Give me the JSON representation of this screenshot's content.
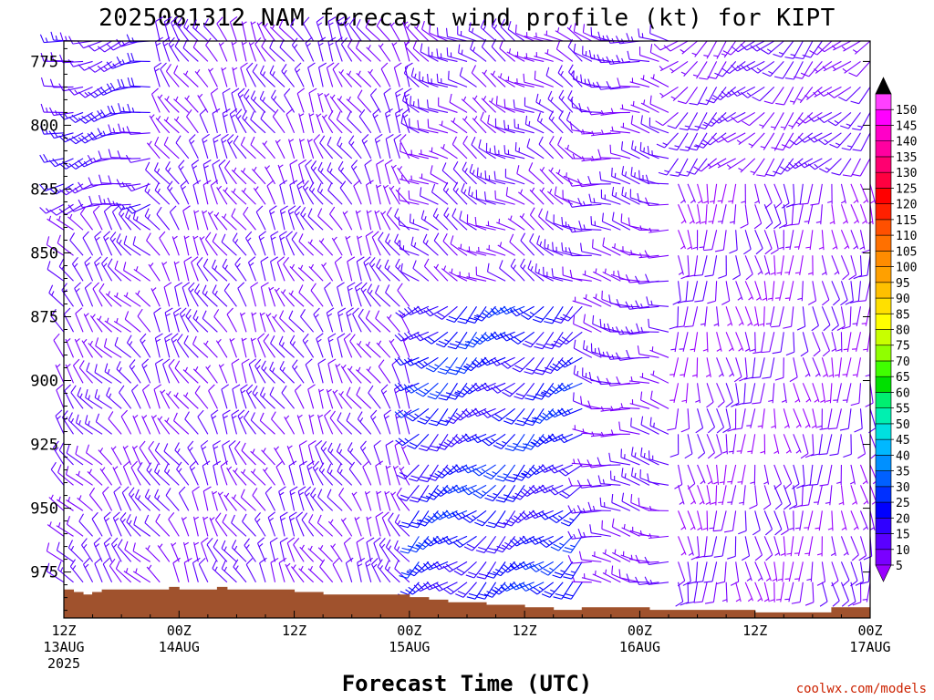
{
  "chart_data": {
    "type": "wind_barb_profile",
    "title": "2025081312 NAM forecast wind profile (kt) for KIPT",
    "xlabel": "Forecast Time (UTC)",
    "ylabel": "",
    "y_ticks": [
      775,
      800,
      825,
      850,
      875,
      900,
      925,
      950,
      975
    ],
    "ylim": [
      767,
      993
    ],
    "x_range_hours": [
      0,
      84
    ],
    "x_ticks": [
      {
        "hour": 0,
        "l1": "12Z",
        "l2": "13AUG",
        "l3": "2025"
      },
      {
        "hour": 12,
        "l1": "00Z",
        "l2": "14AUG",
        "l3": ""
      },
      {
        "hour": 24,
        "l1": "12Z",
        "l2": "",
        "l3": ""
      },
      {
        "hour": 36,
        "l1": "00Z",
        "l2": "15AUG",
        "l3": ""
      },
      {
        "hour": 48,
        "l1": "12Z",
        "l2": "",
        "l3": ""
      },
      {
        "hour": 60,
        "l1": "00Z",
        "l2": "16AUG",
        "l3": ""
      },
      {
        "hour": 72,
        "l1": "12Z",
        "l2": "",
        "l3": ""
      },
      {
        "hour": 84,
        "l1": "00Z",
        "l2": "17AUG",
        "l3": ""
      }
    ],
    "colorbar": {
      "levels": [
        5,
        10,
        15,
        20,
        25,
        30,
        35,
        40,
        45,
        50,
        55,
        60,
        65,
        70,
        75,
        80,
        85,
        90,
        95,
        100,
        105,
        110,
        115,
        120,
        125,
        130,
        135,
        140,
        145,
        150
      ],
      "colors": [
        "#7a00ff",
        "#5a00ff",
        "#3000ff",
        "#0000ff",
        "#0030ff",
        "#0060ff",
        "#0090ff",
        "#00b8ff",
        "#00e0e0",
        "#00f0b0",
        "#00f070",
        "#00e000",
        "#40ff00",
        "#90ff00",
        "#c8ff00",
        "#ffff00",
        "#ffe000",
        "#ffc000",
        "#ffa000",
        "#ff8c00",
        "#ff7000",
        "#ff5000",
        "#ff2000",
        "#ff0000",
        "#ff0040",
        "#ff0070",
        "#ff00a0",
        "#ff00c8",
        "#ff00ff",
        "#ff40ff"
      ],
      "over_color": "#000000",
      "under_color": "#9900ff"
    },
    "terrain_color": "#a0522d",
    "terrain_pressure": [
      [
        0,
        982
      ],
      [
        1,
        983
      ],
      [
        2,
        984
      ],
      [
        3,
        983
      ],
      [
        4,
        982
      ],
      [
        5,
        982
      ],
      [
        6,
        982
      ],
      [
        7,
        982
      ],
      [
        8,
        982
      ],
      [
        9,
        982
      ],
      [
        10,
        982
      ],
      [
        11,
        981
      ],
      [
        12,
        982
      ],
      [
        13,
        982
      ],
      [
        14,
        982
      ],
      [
        15,
        982
      ],
      [
        16,
        981
      ],
      [
        17,
        982
      ],
      [
        18,
        982
      ],
      [
        19,
        982
      ],
      [
        20,
        982
      ],
      [
        21,
        982
      ],
      [
        22,
        982
      ],
      [
        23,
        982
      ],
      [
        24,
        983
      ],
      [
        25,
        983
      ],
      [
        26,
        983
      ],
      [
        27,
        984
      ],
      [
        28,
        984
      ],
      [
        29,
        984
      ],
      [
        30,
        984
      ],
      [
        31,
        984
      ],
      [
        32,
        984
      ],
      [
        33,
        984
      ],
      [
        34,
        984
      ],
      [
        35,
        984
      ],
      [
        36,
        985
      ],
      [
        37,
        985
      ],
      [
        38,
        986
      ],
      [
        39,
        986
      ],
      [
        40,
        987
      ],
      [
        41,
        987
      ],
      [
        42,
        987
      ],
      [
        43,
        987
      ],
      [
        44,
        988
      ],
      [
        45,
        988
      ],
      [
        46,
        988
      ],
      [
        47,
        988
      ],
      [
        48,
        989
      ],
      [
        49,
        989
      ],
      [
        50,
        989
      ],
      [
        51,
        990
      ],
      [
        52,
        990
      ],
      [
        53,
        990
      ],
      [
        54,
        989
      ],
      [
        55,
        989
      ],
      [
        56,
        989
      ],
      [
        57,
        989
      ],
      [
        58,
        989
      ],
      [
        59,
        989
      ],
      [
        60,
        989
      ],
      [
        61,
        990
      ],
      [
        62,
        990
      ],
      [
        63,
        990
      ],
      [
        64,
        990
      ],
      [
        65,
        990
      ],
      [
        66,
        990
      ],
      [
        67,
        990
      ],
      [
        68,
        990
      ],
      [
        69,
        990
      ],
      [
        70,
        990
      ],
      [
        71,
        990
      ],
      [
        72,
        991
      ],
      [
        73,
        991
      ],
      [
        74,
        991
      ],
      [
        75,
        991
      ],
      [
        76,
        991
      ],
      [
        77,
        991
      ],
      [
        78,
        991
      ],
      [
        79,
        991
      ],
      [
        80,
        989
      ],
      [
        81,
        989
      ],
      [
        82,
        989
      ],
      [
        83,
        989
      ],
      [
        84,
        989
      ]
    ],
    "wind_field": {
      "pressure_levels": [
        767,
        775,
        785,
        795,
        803,
        813,
        823,
        831,
        841,
        851,
        861,
        871,
        881,
        891,
        901,
        911,
        921,
        933,
        941,
        951,
        961,
        971,
        979
      ],
      "time_step_hours": 1,
      "regimes": [
        {
          "t": [
            0,
            10
          ],
          "p": [
            767,
            835
          ],
          "dir_deg": 255,
          "speed_kt": 15
        },
        {
          "t": [
            0,
            10
          ],
          "p": [
            835,
            990
          ],
          "dir_deg": 320,
          "speed_kt": 10
        },
        {
          "t": [
            10,
            37
          ],
          "p": [
            767,
            990
          ],
          "dir_deg": 330,
          "speed_kt": 10
        },
        {
          "t": [
            37,
            55
          ],
          "p": [
            767,
            870
          ],
          "dir_deg": 300,
          "speed_kt": 10
        },
        {
          "t": [
            37,
            55
          ],
          "p": [
            870,
            990
          ],
          "dir_deg": 230,
          "speed_kt": 22
        },
        {
          "t": [
            55,
            64
          ],
          "p": [
            767,
            990
          ],
          "dir_deg": 280,
          "speed_kt": 10
        },
        {
          "t": [
            64,
            85
          ],
          "p": [
            767,
            820
          ],
          "dir_deg": 225,
          "speed_kt": 10
        },
        {
          "t": [
            64,
            85
          ],
          "p": [
            820,
            990
          ],
          "dir_deg": 175,
          "speed_kt": 7
        }
      ]
    }
  },
  "credit": "coolwx.com/models"
}
